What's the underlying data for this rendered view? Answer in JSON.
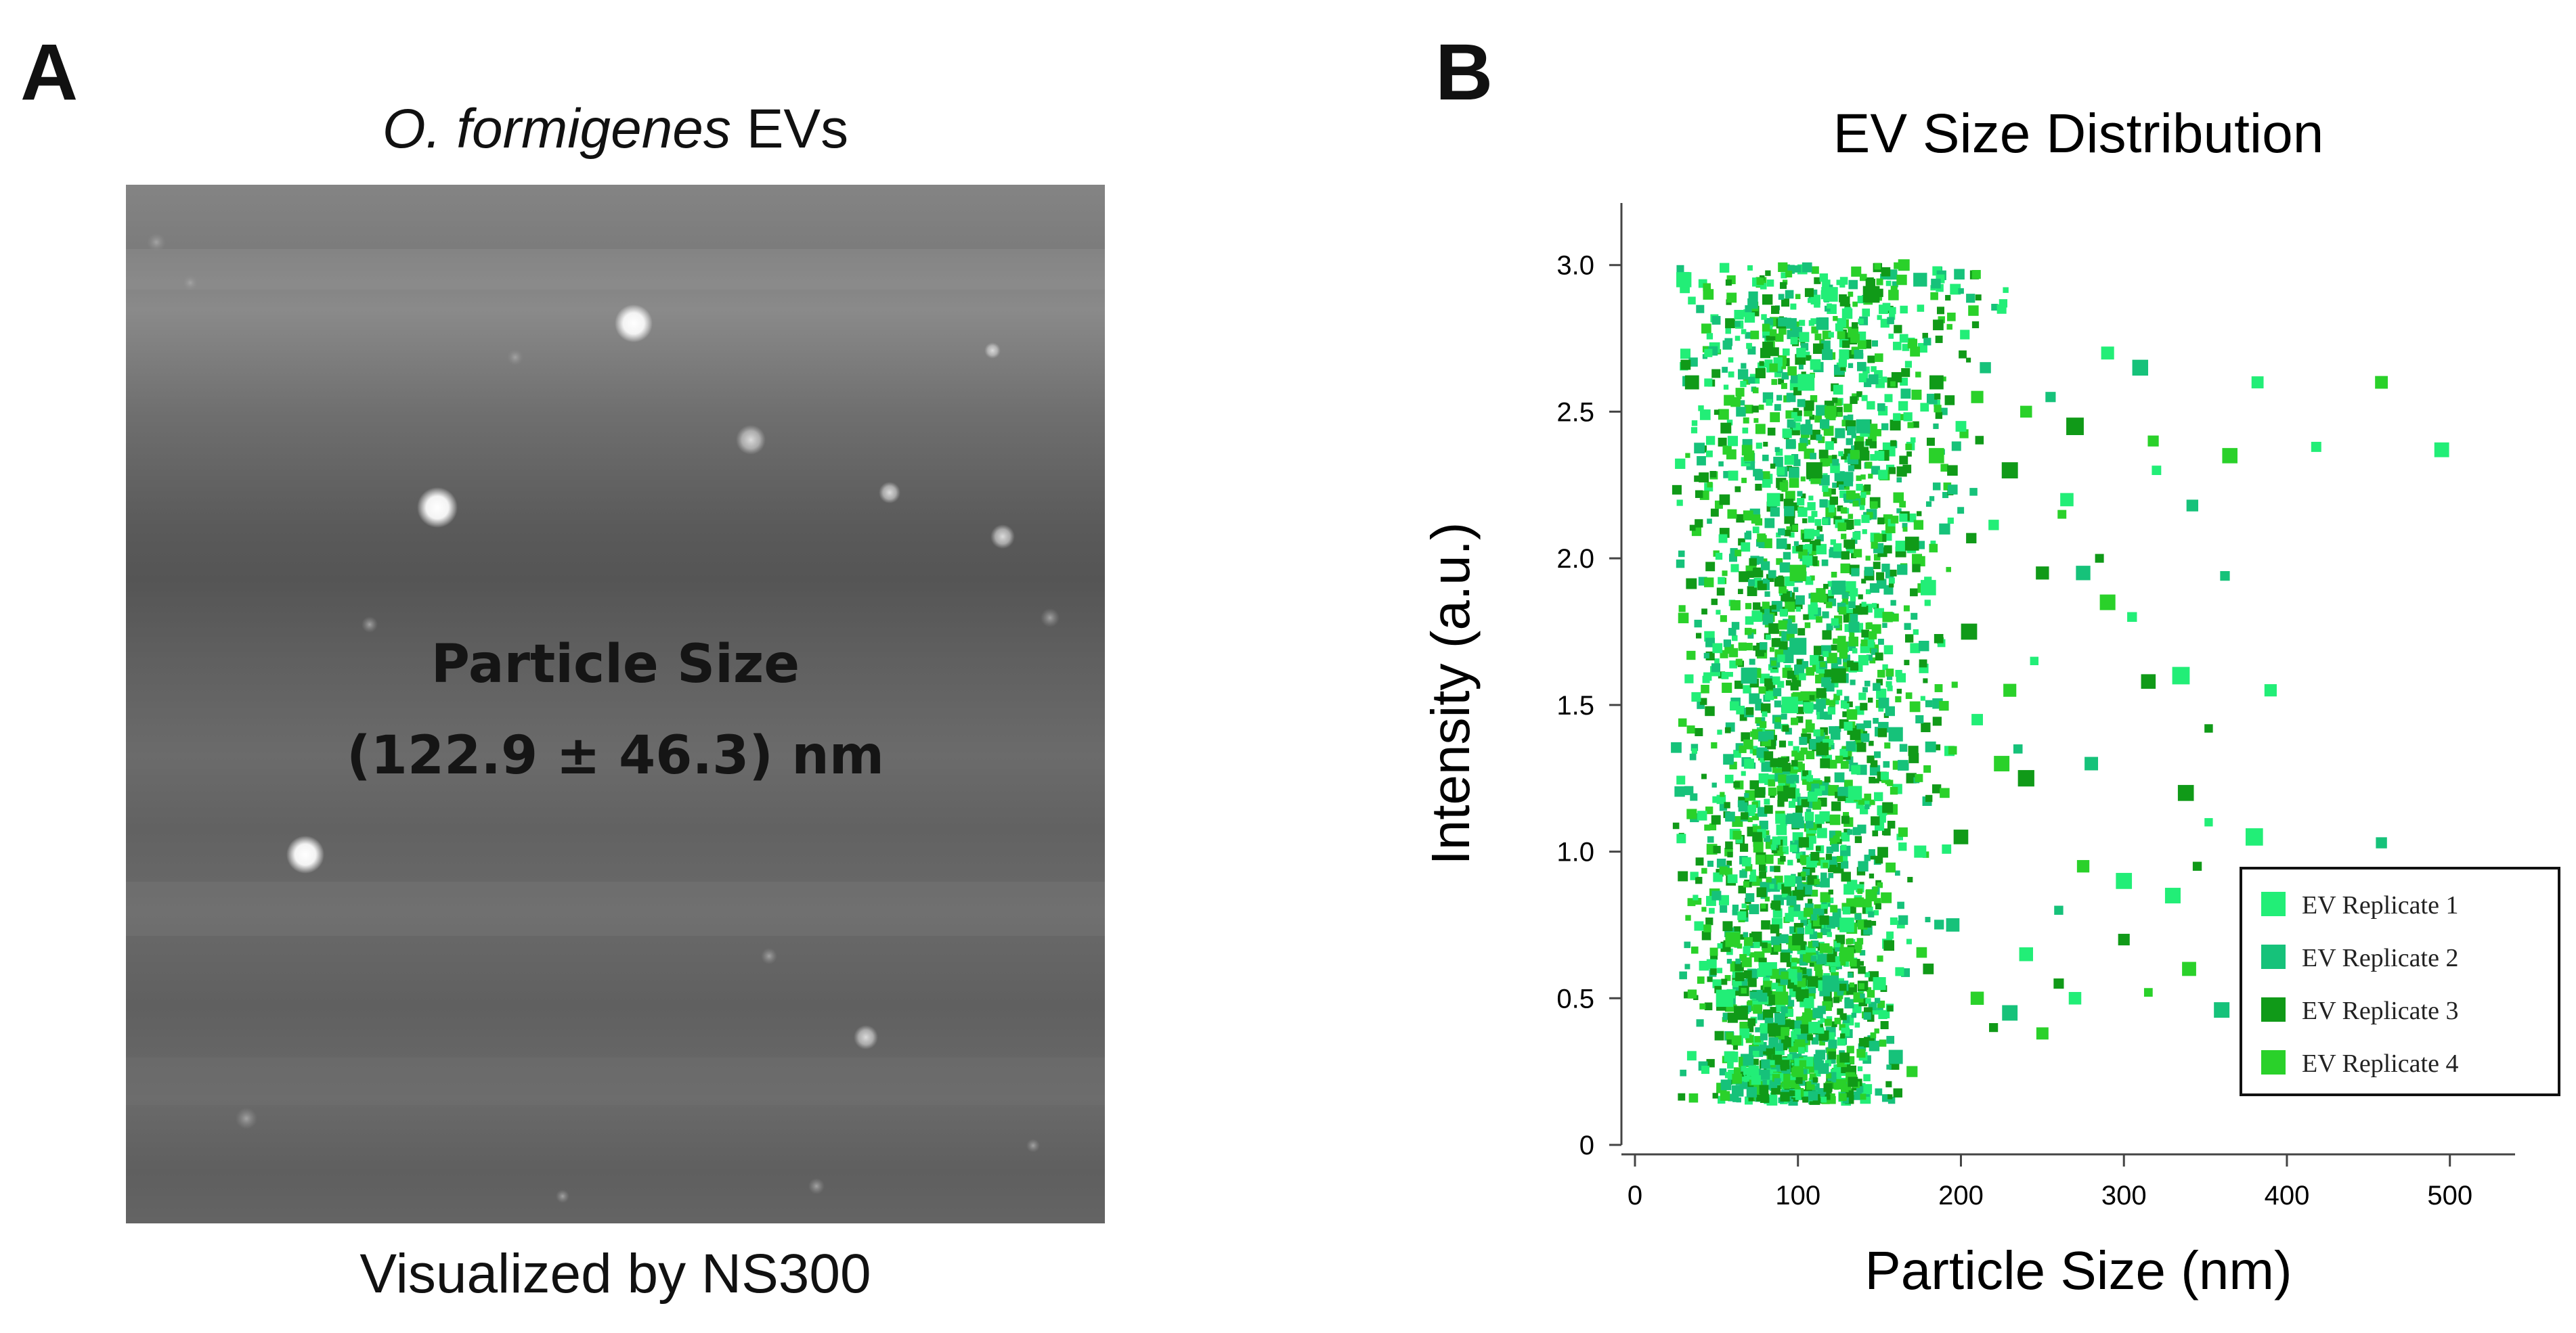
{
  "panel_a": {
    "letter": "A",
    "title_italic": "O. formigenes",
    "title_rest": " EVs",
    "overlay_line1": "Particle Size",
    "overlay_line2": "(122.9 ± 46.3) nm",
    "caption": "Visualized by NS300",
    "image_description_icon": "nanoparticle-tracking-micrograph"
  },
  "panel_b": {
    "letter": "B"
  },
  "chart_data": {
    "type": "scatter",
    "title": "EV Size Distribution",
    "xlabel": "Particle Size (nm)",
    "ylabel": "Intensity (a.u.)",
    "xlim": [
      0,
      540
    ],
    "ylim": [
      0,
      3.2
    ],
    "xticks": [
      0,
      100,
      200,
      300,
      400,
      500
    ],
    "yticks": [
      0,
      0.5,
      1.0,
      1.5,
      2.0,
      2.5,
      3.0
    ],
    "ytick_labels": [
      "0",
      "0.5",
      "1.0",
      "1.5",
      "2.0",
      "2.5",
      "3.0"
    ],
    "legend_position": "bottom-right",
    "series": [
      {
        "name": "EV Replicate 1",
        "color": "#22ee77",
        "points": [
          [
            30,
            2.95
          ],
          [
            45,
            2.7
          ],
          [
            60,
            2.4
          ],
          [
            75,
            1.8
          ],
          [
            85,
            2.2
          ],
          [
            95,
            1.5
          ],
          [
            105,
            2.6
          ],
          [
            120,
            2.9
          ],
          [
            135,
            1.2
          ],
          [
            150,
            2.35
          ],
          [
            165,
            2.75
          ],
          [
            180,
            1.9
          ],
          [
            200,
            2.45
          ],
          [
            225,
            2.85
          ],
          [
            245,
            1.65
          ],
          [
            265,
            2.2
          ],
          [
            290,
            2.7
          ],
          [
            305,
            1.8
          ],
          [
            320,
            2.3
          ],
          [
            335,
            1.6
          ],
          [
            352,
            1.1
          ],
          [
            382,
            2.6
          ],
          [
            390,
            1.55
          ],
          [
            418,
            2.38
          ],
          [
            495,
            2.37
          ],
          [
            380,
            1.05
          ],
          [
            60,
            0.3
          ],
          [
            80,
            0.6
          ],
          [
            95,
            0.9
          ],
          [
            70,
            1.3
          ],
          [
            110,
            0.4
          ],
          [
            130,
            0.75
          ],
          [
            55,
            0.5
          ],
          [
            150,
            0.55
          ],
          [
            175,
            1.0
          ],
          [
            210,
            1.45
          ],
          [
            240,
            0.65
          ],
          [
            270,
            0.5
          ],
          [
            300,
            0.9
          ],
          [
            330,
            0.85
          ]
        ]
      },
      {
        "name": "EV Replicate 2",
        "color": "#16c27a",
        "points": [
          [
            40,
            2.85
          ],
          [
            65,
            2.5
          ],
          [
            90,
            2.05
          ],
          [
            100,
            1.7
          ],
          [
            115,
            2.8
          ],
          [
            140,
            2.45
          ],
          [
            160,
            1.4
          ],
          [
            175,
            2.95
          ],
          [
            190,
            2.1
          ],
          [
            215,
            2.65
          ],
          [
            235,
            1.35
          ],
          [
            255,
            2.55
          ],
          [
            275,
            1.95
          ],
          [
            310,
            2.65
          ],
          [
            342,
            2.18
          ],
          [
            362,
            1.94
          ],
          [
            360,
            0.46
          ],
          [
            458,
            1.03
          ],
          [
            280,
            1.3
          ],
          [
            50,
            0.85
          ],
          [
            85,
            0.35
          ],
          [
            100,
            1.1
          ],
          [
            120,
            0.55
          ],
          [
            140,
            0.95
          ],
          [
            160,
            0.3
          ],
          [
            195,
            0.75
          ],
          [
            230,
            0.45
          ],
          [
            260,
            0.8
          ],
          [
            70,
            1.6
          ],
          [
            125,
            1.9
          ]
        ]
      },
      {
        "name": "EV Replicate 3",
        "color": "#109a18",
        "points": [
          [
            35,
            2.6
          ],
          [
            55,
            2.2
          ],
          [
            80,
            2.7
          ],
          [
            95,
            1.2
          ],
          [
            110,
            2.3
          ],
          [
            125,
            1.6
          ],
          [
            145,
            2.9
          ],
          [
            170,
            2.05
          ],
          [
            185,
            2.6
          ],
          [
            205,
            1.75
          ],
          [
            230,
            2.3
          ],
          [
            250,
            1.95
          ],
          [
            270,
            2.45
          ],
          [
            285,
            2.0
          ],
          [
            315,
            1.58
          ],
          [
            338,
            1.2
          ],
          [
            352,
            1.42
          ],
          [
            345,
            0.95
          ],
          [
            300,
            0.7
          ],
          [
            260,
            0.55
          ],
          [
            220,
            0.4
          ],
          [
            180,
            0.6
          ],
          [
            140,
            0.35
          ],
          [
            100,
            0.7
          ],
          [
            65,
            0.45
          ],
          [
            75,
            1.05
          ],
          [
            115,
            1.35
          ],
          [
            155,
            1.15
          ],
          [
            200,
            1.05
          ],
          [
            240,
            1.25
          ]
        ]
      },
      {
        "name": "EV Replicate 4",
        "color": "#2ad12a",
        "points": [
          [
            45,
            2.9
          ],
          [
            70,
            2.35
          ],
          [
            85,
            2.65
          ],
          [
            100,
            1.95
          ],
          [
            120,
            2.5
          ],
          [
            135,
            2.75
          ],
          [
            155,
            1.8
          ],
          [
            165,
            3.0
          ],
          [
            185,
            2.35
          ],
          [
            210,
            2.55
          ],
          [
            225,
            1.3
          ],
          [
            240,
            2.5
          ],
          [
            262,
            2.15
          ],
          [
            290,
            1.85
          ],
          [
            318,
            2.4
          ],
          [
            365,
            2.35
          ],
          [
            458,
            2.6
          ],
          [
            250,
            0.38
          ],
          [
            210,
            0.5
          ],
          [
            170,
            0.25
          ],
          [
            130,
            0.65
          ],
          [
            90,
            0.5
          ],
          [
            60,
            0.7
          ],
          [
            100,
            0.25
          ],
          [
            145,
            0.85
          ],
          [
            190,
            1.2
          ],
          [
            230,
            1.55
          ],
          [
            275,
            0.95
          ],
          [
            315,
            0.52
          ],
          [
            340,
            0.6
          ]
        ]
      }
    ],
    "cluster_summary": {
      "dense_x_range": [
        40,
        210
      ],
      "dense_y_range": [
        0.15,
        3.0
      ]
    }
  }
}
